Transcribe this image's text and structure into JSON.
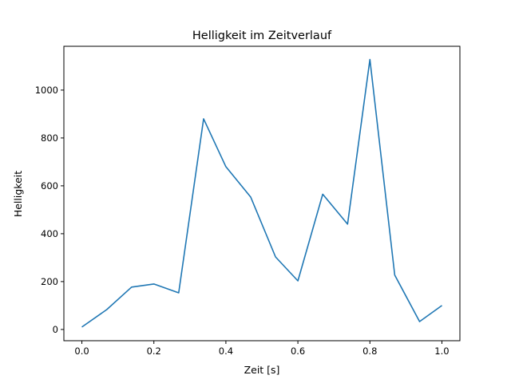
{
  "chart_data": {
    "type": "line",
    "title": "Helligkeit im Zeitverlauf",
    "xlabel": "Zeit [s]",
    "ylabel": "Helligkeit",
    "xlim": [
      -0.05,
      1.05
    ],
    "ylim": [
      -47,
      1183
    ],
    "xticks": [
      0.0,
      0.2,
      0.4,
      0.6,
      0.8,
      1.0
    ],
    "xtick_labels": [
      "0.0",
      "0.2",
      "0.4",
      "0.6",
      "0.8",
      "1.0"
    ],
    "yticks": [
      0,
      200,
      400,
      600,
      800,
      1000
    ],
    "ytick_labels": [
      "0",
      "200",
      "400",
      "600",
      "800",
      "1000"
    ],
    "grid": false,
    "series": [
      {
        "name": "Helligkeit",
        "color": "#1f77b4",
        "x": [
          0.0,
          0.069,
          0.138,
          0.2,
          0.269,
          0.338,
          0.4,
          0.469,
          0.538,
          0.6,
          0.669,
          0.738,
          0.8,
          0.869,
          0.938,
          1.0
        ],
        "y": [
          10,
          83,
          177,
          190,
          153,
          880,
          680,
          553,
          303,
          203,
          565,
          440,
          1128,
          227,
          33,
          100
        ]
      }
    ]
  }
}
